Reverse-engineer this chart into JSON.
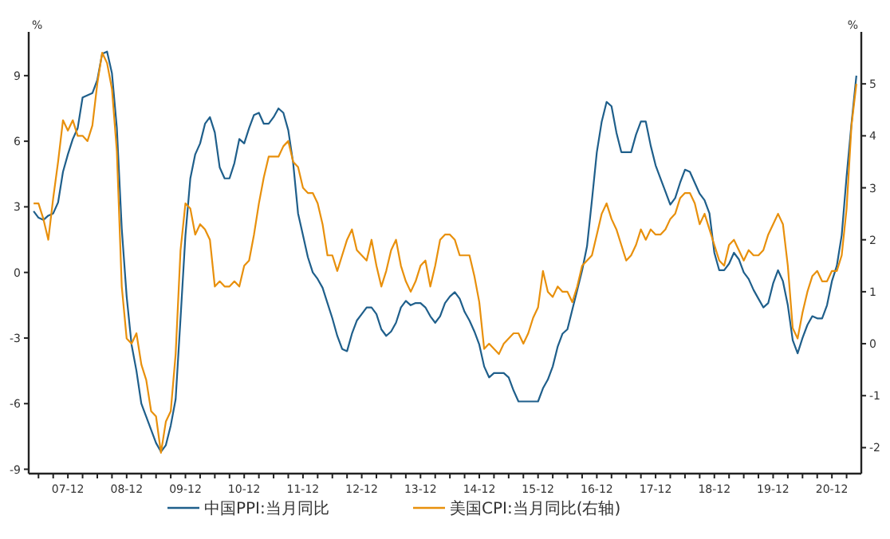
{
  "chart_data": {
    "type": "line",
    "ylabel": "%",
    "y2label": "%",
    "legend": "bottom",
    "xlim": [
      "2007-04",
      "2021-06"
    ],
    "xticks": [
      {
        "value": "2007-06",
        "label": null
      },
      {
        "value": "2007-09",
        "label": null
      },
      {
        "value": "2007-12",
        "label": "07-12"
      },
      {
        "value": "2008-03",
        "label": null
      },
      {
        "value": "2008-06",
        "label": null
      },
      {
        "value": "2008-09",
        "label": null
      },
      {
        "value": "2008-12",
        "label": "08-12"
      },
      {
        "value": "2009-03",
        "label": null
      },
      {
        "value": "2009-06",
        "label": null
      },
      {
        "value": "2009-09",
        "label": null
      },
      {
        "value": "2009-12",
        "label": "09-12"
      },
      {
        "value": "2010-03",
        "label": null
      },
      {
        "value": "2010-06",
        "label": null
      },
      {
        "value": "2010-09",
        "label": null
      },
      {
        "value": "2010-12",
        "label": "10-12"
      },
      {
        "value": "2011-03",
        "label": null
      },
      {
        "value": "2011-06",
        "label": null
      },
      {
        "value": "2011-09",
        "label": null
      },
      {
        "value": "2011-12",
        "label": "11-12"
      },
      {
        "value": "2012-03",
        "label": null
      },
      {
        "value": "2012-06",
        "label": null
      },
      {
        "value": "2012-09",
        "label": null
      },
      {
        "value": "2012-12",
        "label": "12-12"
      },
      {
        "value": "2013-03",
        "label": null
      },
      {
        "value": "2013-06",
        "label": null
      },
      {
        "value": "2013-09",
        "label": null
      },
      {
        "value": "2013-12",
        "label": "13-12"
      },
      {
        "value": "2014-03",
        "label": null
      },
      {
        "value": "2014-06",
        "label": null
      },
      {
        "value": "2014-09",
        "label": null
      },
      {
        "value": "2014-12",
        "label": "14-12"
      },
      {
        "value": "2015-03",
        "label": null
      },
      {
        "value": "2015-06",
        "label": null
      },
      {
        "value": "2015-09",
        "label": null
      },
      {
        "value": "2015-12",
        "label": "15-12"
      },
      {
        "value": "2016-03",
        "label": null
      },
      {
        "value": "2016-06",
        "label": null
      },
      {
        "value": "2016-09",
        "label": null
      },
      {
        "value": "2016-12",
        "label": "16-12"
      },
      {
        "value": "2017-03",
        "label": null
      },
      {
        "value": "2017-06",
        "label": null
      },
      {
        "value": "2017-09",
        "label": null
      },
      {
        "value": "2017-12",
        "label": "17-12"
      },
      {
        "value": "2018-03",
        "label": null
      },
      {
        "value": "2018-06",
        "label": null
      },
      {
        "value": "2018-09",
        "label": null
      },
      {
        "value": "2018-12",
        "label": "18-12"
      },
      {
        "value": "2019-03",
        "label": null
      },
      {
        "value": "2019-06",
        "label": null
      },
      {
        "value": "2019-09",
        "label": null
      },
      {
        "value": "2019-12",
        "label": "19-12"
      },
      {
        "value": "2020-03",
        "label": null
      },
      {
        "value": "2020-06",
        "label": null
      },
      {
        "value": "2020-09",
        "label": null
      },
      {
        "value": "2020-12",
        "label": "20-12"
      },
      {
        "value": "2021-03",
        "label": null
      }
    ],
    "ylim": [
      -9.2,
      11
    ],
    "yticks": [
      -9,
      -6,
      -3,
      0,
      3,
      6,
      9
    ],
    "y2lim": [
      -2.5,
      6
    ],
    "y2ticks": [
      -2,
      -1,
      0,
      1,
      2,
      3,
      4,
      5
    ],
    "x": [
      "2007-05",
      "2007-06",
      "2007-07",
      "2007-08",
      "2007-09",
      "2007-10",
      "2007-11",
      "2007-12",
      "2008-01",
      "2008-02",
      "2008-03",
      "2008-04",
      "2008-05",
      "2008-06",
      "2008-07",
      "2008-08",
      "2008-09",
      "2008-10",
      "2008-11",
      "2008-12",
      "2009-01",
      "2009-02",
      "2009-03",
      "2009-04",
      "2009-05",
      "2009-06",
      "2009-07",
      "2009-08",
      "2009-09",
      "2009-10",
      "2009-11",
      "2009-12",
      "2010-01",
      "2010-02",
      "2010-03",
      "2010-04",
      "2010-05",
      "2010-06",
      "2010-07",
      "2010-08",
      "2010-09",
      "2010-10",
      "2010-11",
      "2010-12",
      "2011-01",
      "2011-02",
      "2011-03",
      "2011-04",
      "2011-05",
      "2011-06",
      "2011-07",
      "2011-08",
      "2011-09",
      "2011-10",
      "2011-11",
      "2011-12",
      "2012-01",
      "2012-02",
      "2012-03",
      "2012-04",
      "2012-05",
      "2012-06",
      "2012-07",
      "2012-08",
      "2012-09",
      "2012-10",
      "2012-11",
      "2012-12",
      "2013-01",
      "2013-02",
      "2013-03",
      "2013-04",
      "2013-05",
      "2013-06",
      "2013-07",
      "2013-08",
      "2013-09",
      "2013-10",
      "2013-11",
      "2013-12",
      "2014-01",
      "2014-02",
      "2014-03",
      "2014-04",
      "2014-05",
      "2014-06",
      "2014-07",
      "2014-08",
      "2014-09",
      "2014-10",
      "2014-11",
      "2014-12",
      "2015-01",
      "2015-02",
      "2015-03",
      "2015-04",
      "2015-05",
      "2015-06",
      "2015-07",
      "2015-08",
      "2015-09",
      "2015-10",
      "2015-11",
      "2015-12",
      "2016-01",
      "2016-02",
      "2016-03",
      "2016-04",
      "2016-05",
      "2016-06",
      "2016-07",
      "2016-08",
      "2016-09",
      "2016-10",
      "2016-11",
      "2016-12",
      "2017-01",
      "2017-02",
      "2017-03",
      "2017-04",
      "2017-05",
      "2017-06",
      "2017-07",
      "2017-08",
      "2017-09",
      "2017-10",
      "2017-11",
      "2017-12",
      "2018-01",
      "2018-02",
      "2018-03",
      "2018-04",
      "2018-05",
      "2018-06",
      "2018-07",
      "2018-08",
      "2018-09",
      "2018-10",
      "2018-11",
      "2018-12",
      "2019-01",
      "2019-02",
      "2019-03",
      "2019-04",
      "2019-05",
      "2019-06",
      "2019-07",
      "2019-08",
      "2019-09",
      "2019-10",
      "2019-11",
      "2019-12",
      "2020-01",
      "2020-02",
      "2020-03",
      "2020-04",
      "2020-05",
      "2020-06",
      "2020-07",
      "2020-08",
      "2020-09",
      "2020-10",
      "2020-11",
      "2020-12",
      "2021-01",
      "2021-02",
      "2021-03",
      "2021-04",
      "2021-05"
    ],
    "series": [
      {
        "name": "中国PPI:当月同比",
        "color": "#1f5f8b",
        "values": [
          2.8,
          2.5,
          2.4,
          2.6,
          2.7,
          3.2,
          4.6,
          5.4,
          6.1,
          6.6,
          8.0,
          8.1,
          8.2,
          8.8,
          10.0,
          10.1,
          9.1,
          6.6,
          2.0,
          -1.1,
          -3.3,
          -4.5,
          -6.0,
          -6.6,
          -7.2,
          -7.8,
          -8.2,
          -7.9,
          -7.0,
          -5.8,
          -2.1,
          1.7,
          4.3,
          5.4,
          5.9,
          6.8,
          7.1,
          6.4,
          4.8,
          4.3,
          4.3,
          5.0,
          6.1,
          5.9,
          6.6,
          7.2,
          7.3,
          6.8,
          6.8,
          7.1,
          7.5,
          7.3,
          6.5,
          5.0,
          2.7,
          1.7,
          0.7,
          0.0,
          -0.3,
          -0.7,
          -1.4,
          -2.1,
          -2.9,
          -3.5,
          -3.6,
          -2.8,
          -2.2,
          -1.9,
          -1.6,
          -1.6,
          -1.9,
          -2.6,
          -2.9,
          -2.7,
          -2.3,
          -1.6,
          -1.3,
          -1.5,
          -1.4,
          -1.4,
          -1.6,
          -2.0,
          -2.3,
          -2.0,
          -1.4,
          -1.1,
          -0.9,
          -1.2,
          -1.8,
          -2.2,
          -2.7,
          -3.3,
          -4.3,
          -4.8,
          -4.6,
          -4.6,
          -4.6,
          -4.8,
          -5.4,
          -5.9,
          -5.9,
          -5.9,
          -5.9,
          -5.9,
          -5.3,
          -4.9,
          -4.3,
          -3.4,
          -2.8,
          -2.6,
          -1.7,
          -0.8,
          0.1,
          1.2,
          3.3,
          5.5,
          6.9,
          7.8,
          7.6,
          6.4,
          5.5,
          5.5,
          5.5,
          6.3,
          6.9,
          6.9,
          5.8,
          4.9,
          4.3,
          3.7,
          3.1,
          3.4,
          4.1,
          4.7,
          4.6,
          4.1,
          3.6,
          3.3,
          2.7,
          0.9,
          0.1,
          0.1,
          0.4,
          0.9,
          0.6,
          0.0,
          -0.3,
          -0.8,
          -1.2,
          -1.6,
          -1.4,
          -0.5,
          0.1,
          -0.4,
          -1.5,
          -3.1,
          -3.7,
          -3.0,
          -2.4,
          -2.0,
          -2.1,
          -2.1,
          -1.5,
          -0.4,
          0.3,
          1.7,
          4.4,
          6.8,
          9.0
        ]
      },
      {
        "name": "美国CPI:当月同比(右轴)",
        "color": "#e8900c",
        "axis": "y2",
        "values": [
          2.7,
          2.7,
          2.4,
          2.0,
          2.8,
          3.5,
          4.3,
          4.1,
          4.3,
          4.0,
          4.0,
          3.9,
          4.2,
          5.0,
          5.6,
          5.4,
          4.9,
          3.7,
          1.1,
          0.1,
          0.0,
          0.2,
          -0.4,
          -0.7,
          -1.3,
          -1.4,
          -2.1,
          -1.5,
          -1.3,
          -0.2,
          1.8,
          2.7,
          2.6,
          2.1,
          2.3,
          2.2,
          2.0,
          1.1,
          1.2,
          1.1,
          1.1,
          1.2,
          1.1,
          1.5,
          1.6,
          2.1,
          2.7,
          3.2,
          3.6,
          3.6,
          3.6,
          3.8,
          3.9,
          3.5,
          3.4,
          3.0,
          2.9,
          2.9,
          2.7,
          2.3,
          1.7,
          1.7,
          1.4,
          1.7,
          2.0,
          2.2,
          1.8,
          1.7,
          1.6,
          2.0,
          1.5,
          1.1,
          1.4,
          1.8,
          2.0,
          1.5,
          1.2,
          1.0,
          1.2,
          1.5,
          1.6,
          1.1,
          1.5,
          2.0,
          2.1,
          2.1,
          2.0,
          1.7,
          1.7,
          1.7,
          1.3,
          0.8,
          -0.1,
          0.0,
          -0.1,
          -0.2,
          0.0,
          0.1,
          0.2,
          0.2,
          0.0,
          0.2,
          0.5,
          0.7,
          1.4,
          1.0,
          0.9,
          1.1,
          1.0,
          1.0,
          0.8,
          1.1,
          1.5,
          1.6,
          1.7,
          2.1,
          2.5,
          2.7,
          2.4,
          2.2,
          1.9,
          1.6,
          1.7,
          1.9,
          2.2,
          2.0,
          2.2,
          2.1,
          2.1,
          2.2,
          2.4,
          2.5,
          2.8,
          2.9,
          2.9,
          2.7,
          2.3,
          2.5,
          2.2,
          1.9,
          1.6,
          1.5,
          1.9,
          2.0,
          1.8,
          1.6,
          1.8,
          1.7,
          1.7,
          1.8,
          2.1,
          2.3,
          2.5,
          2.3,
          1.5,
          0.3,
          0.1,
          0.6,
          1.0,
          1.3,
          1.4,
          1.2,
          1.2,
          1.4,
          1.4,
          1.7,
          2.6,
          4.2,
          5.0
        ]
      }
    ]
  }
}
